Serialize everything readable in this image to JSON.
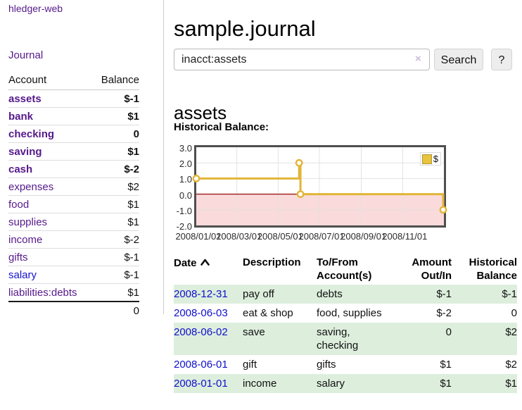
{
  "app": {
    "brand": "hledger-web"
  },
  "sidebar": {
    "nav_journal": "Journal",
    "table": {
      "headers": {
        "account": "Account",
        "balance": "Balance"
      },
      "accounts": [
        {
          "name": "assets",
          "indent": 1,
          "bold": true,
          "link_style": "purple",
          "balance": "$-1",
          "balance_style": "negative-strong"
        },
        {
          "name": "bank",
          "indent": 2,
          "bold": true,
          "link_style": "purple",
          "balance": "$1",
          "balance_style": "default"
        },
        {
          "name": "checking",
          "indent": 3,
          "bold": true,
          "link_style": "purple",
          "balance": "0",
          "balance_style": "default"
        },
        {
          "name": "saving",
          "indent": 3,
          "bold": true,
          "link_style": "purple",
          "balance": "$1",
          "balance_style": "default"
        },
        {
          "name": "cash",
          "indent": 2,
          "bold": true,
          "link_style": "purple",
          "balance": "$-2",
          "balance_style": "negative-strong"
        },
        {
          "name": "expenses",
          "indent": 1,
          "bold": false,
          "link_style": "purple",
          "balance": "$2",
          "balance_style": "default"
        },
        {
          "name": "food",
          "indent": 2,
          "bold": false,
          "link_style": "purple",
          "balance": "$1",
          "balance_style": "default"
        },
        {
          "name": "supplies",
          "indent": 2,
          "bold": false,
          "link_style": "purple",
          "balance": "$1",
          "balance_style": "default"
        },
        {
          "name": "income",
          "indent": 1,
          "bold": false,
          "link_style": "purple",
          "balance": "$-2",
          "balance_style": "negative-muted"
        },
        {
          "name": "gifts",
          "indent": 2,
          "bold": false,
          "link_style": "purple",
          "balance": "$-1",
          "balance_style": "negative-muted"
        },
        {
          "name": "salary",
          "indent": 2,
          "bold": false,
          "link_style": "blue",
          "balance": "$-1",
          "balance_style": "negative-muted"
        },
        {
          "name": "liabilities:debts",
          "indent": 1,
          "bold": false,
          "link_style": "purple",
          "balance": "$1",
          "balance_style": "default"
        }
      ],
      "total": "0"
    }
  },
  "main": {
    "title": "sample.journal",
    "search": {
      "value": "inacct:assets",
      "clear_icon": "×",
      "button": "Search",
      "help_button": "?"
    },
    "account_heading": "assets",
    "chart_heading": "Historical Balance:"
  },
  "chart_data": {
    "type": "line",
    "title": "Historical Balance",
    "step": true,
    "x_range": [
      "2008-01-01",
      "2009-01-01"
    ],
    "ylim": [
      -2,
      3
    ],
    "yticks": [
      "3.0",
      "2.0",
      "1.0",
      "0.0",
      "-1.0",
      "-2.0"
    ],
    "xticks": [
      {
        "label": "2008/01/01",
        "date": "2008-01-01"
      },
      {
        "label": "2008/03/01",
        "date": "2008-03-01"
      },
      {
        "label": "2008/05/01",
        "date": "2008-05-01"
      },
      {
        "label": "2008/07/01",
        "date": "2008-07-01"
      },
      {
        "label": "2008/09/01",
        "date": "2008-09-01"
      },
      {
        "label": "2008/11/01",
        "date": "2008-11-01"
      }
    ],
    "series": [
      {
        "name": "$",
        "color": "#e2b538",
        "points": [
          [
            "2008-01-01",
            1
          ],
          [
            "2008-06-01",
            2
          ],
          [
            "2008-06-03",
            0
          ],
          [
            "2008-12-31",
            -1
          ]
        ]
      }
    ],
    "grid": true,
    "negative_region_color": "#fadada",
    "zero_line_color": "#9e1a1a",
    "legend": {
      "label": "$",
      "swatch_color": "#e8c33c",
      "position": "top-right"
    }
  },
  "transactions": {
    "headers": {
      "date": "Date",
      "description": "Description",
      "accounts": "To/From Account(s)",
      "amount": "Amount Out/In",
      "balance": "Historical Balance"
    },
    "sort": {
      "column": "date",
      "direction": "ascending"
    },
    "rows": [
      {
        "date": "2008-12-31",
        "description": "pay off",
        "accounts": "debts",
        "amount": "$-1",
        "amount_negative": true,
        "balance": "$-1",
        "balance_negative": true
      },
      {
        "date": "2008-06-03",
        "description": "eat & shop",
        "accounts": "food, supplies",
        "amount": "$-2",
        "amount_negative": true,
        "balance": "0",
        "balance_negative": false
      },
      {
        "date": "2008-06-02",
        "description": "save",
        "accounts": "saving, checking",
        "amount": "0",
        "amount_negative": false,
        "balance": "$2",
        "balance_negative": false
      },
      {
        "date": "2008-06-01",
        "description": "gift",
        "accounts": "gifts",
        "amount": "$1",
        "amount_negative": false,
        "balance": "$2",
        "balance_negative": false
      },
      {
        "date": "2008-01-01",
        "description": "income",
        "accounts": "salary",
        "amount": "$1",
        "amount_negative": false,
        "balance": "$1",
        "balance_negative": false
      }
    ]
  }
}
